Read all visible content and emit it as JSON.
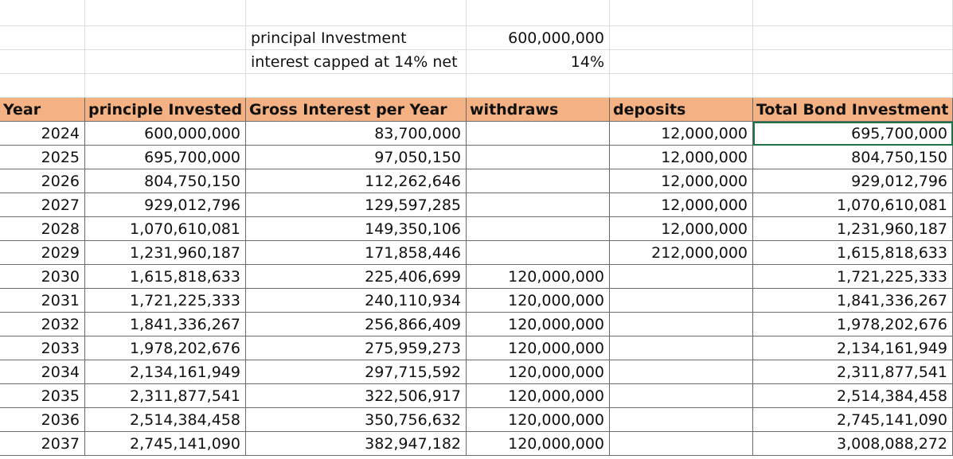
{
  "summary": {
    "rows": [
      [
        "principal Investment",
        "600,000,000"
      ],
      [
        "interest capped at 14% net",
        "14%"
      ]
    ]
  },
  "table": {
    "header": [
      "Year",
      "principle Invested",
      "Gross Interest per Year",
      "withdraws",
      "deposits",
      "Total Bond Investment"
    ],
    "rows": [
      [
        "2024",
        "600,000,000",
        "83,700,000",
        null,
        "12,000,000",
        "695,700,000"
      ],
      [
        "2025",
        "695,700,000",
        "97,050,150",
        null,
        "12,000,000",
        "804,750,150"
      ],
      [
        "2026",
        "804,750,150",
        "112,262,646",
        null,
        "12,000,000",
        "929,012,796"
      ],
      [
        "2027",
        "929,012,796",
        "129,597,285",
        null,
        "12,000,000",
        "1,070,610,081"
      ],
      [
        "2028",
        "1,070,610,081",
        "149,350,106",
        null,
        "12,000,000",
        "1,231,960,187"
      ],
      [
        "2029",
        "1,231,960,187",
        "171,858,446",
        null,
        "212,000,000",
        "1,615,818,633"
      ],
      [
        "2030",
        "1,615,818,633",
        "225,406,699",
        "120,000,000",
        null,
        "1,721,225,333"
      ],
      [
        "2031",
        "1,721,225,333",
        "240,110,934",
        "120,000,000",
        null,
        "1,841,336,267"
      ],
      [
        "2032",
        "1,841,336,267",
        "256,866,409",
        "120,000,000",
        null,
        "1,978,202,676"
      ],
      [
        "2033",
        "1,978,202,676",
        "275,959,273",
        "120,000,000",
        null,
        "2,134,161,949"
      ],
      [
        "2034",
        "2,134,161,949",
        "297,715,592",
        "120,000,000",
        null,
        "2,311,877,541"
      ],
      [
        "2035",
        "2,311,877,541",
        "322,506,917",
        "120,000,000",
        null,
        "2,514,384,458"
      ],
      [
        "2036",
        "2,514,384,458",
        "350,756,632",
        "120,000,000",
        null,
        "2,745,141,090"
      ],
      [
        "2037",
        "2,745,141,090",
        "382,947,182",
        "120,000,000",
        null,
        "3,008,088,272"
      ]
    ]
  }
}
